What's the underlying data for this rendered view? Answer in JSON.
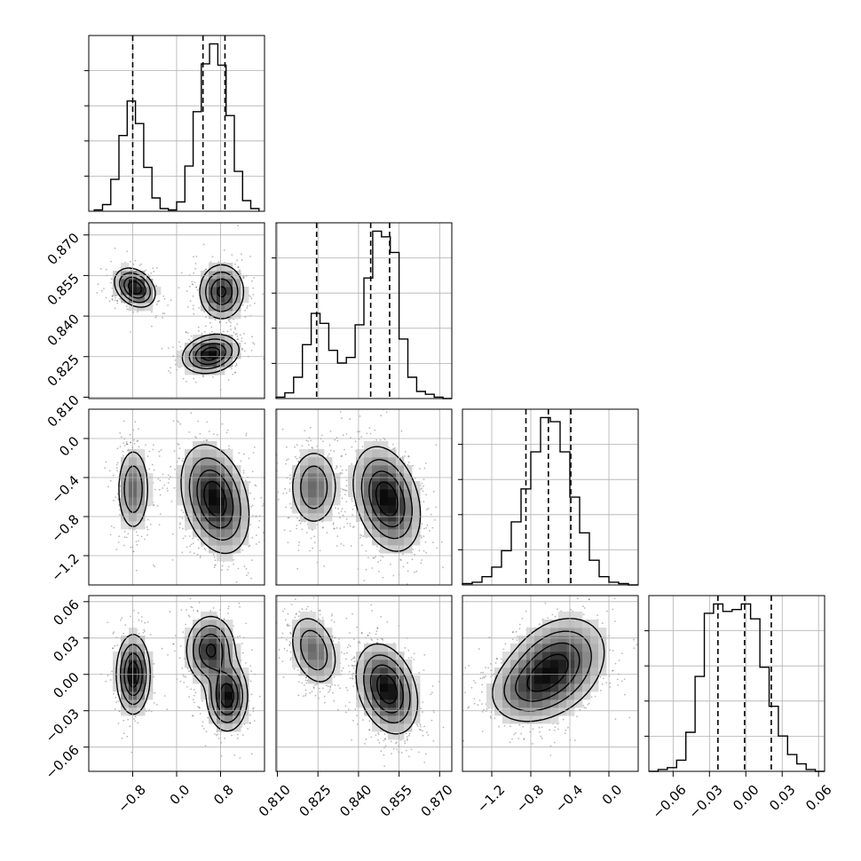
{
  "chart_data": {
    "type": "corner",
    "parameters": [
      {
        "range": [
          -1.6,
          1.6
        ],
        "ticks": [
          "−0.8",
          "0.0",
          "0.8"
        ],
        "tick_values": [
          -0.8,
          0.0,
          0.8
        ],
        "quantiles": [
          -0.8,
          0.48,
          0.88
        ]
      },
      {
        "range": [
          0.8095,
          0.8745
        ],
        "ticks": [
          "0.810",
          "0.825",
          "0.840",
          "0.855",
          "0.870"
        ],
        "tick_values": [
          0.81,
          0.825,
          0.84,
          0.855,
          0.87
        ],
        "quantiles": [
          0.8245,
          0.8445,
          0.8515
        ]
      },
      {
        "range": [
          -1.5,
          0.3
        ],
        "ticks": [
          "−1.2",
          "−0.8",
          "−0.4",
          "0.0"
        ],
        "tick_values": [
          -1.2,
          -0.8,
          -0.4,
          0.0
        ],
        "quantiles": [
          -0.85,
          -0.62,
          -0.39
        ]
      },
      {
        "range": [
          -0.08,
          0.065
        ],
        "ticks": [
          "−0.06",
          "−0.03",
          "0.00",
          "0.03",
          "0.06"
        ],
        "tick_values": [
          -0.06,
          -0.03,
          0.0,
          0.03,
          0.06
        ],
        "quantiles": [
          -0.023,
          -0.001,
          0.021
        ]
      }
    ],
    "histograms": [
      {
        "param": 0,
        "bins": [
          -1.5,
          1.5
        ],
        "counts": [
          1,
          5,
          24,
          57,
          83,
          66,
          33,
          10,
          2,
          1,
          7,
          34,
          75,
          111,
          126,
          110,
          72,
          30,
          8,
          2
        ]
      },
      {
        "param": 1,
        "bins": [
          0.8095,
          0.8745
        ],
        "counts": [
          1,
          4,
          15,
          38,
          60,
          53,
          34,
          25,
          29,
          52,
          85,
          118,
          114,
          103,
          42,
          15,
          5,
          3,
          1,
          0
        ]
      },
      {
        "param": 2,
        "bins": [
          -1.5,
          0.3
        ],
        "counts": [
          1,
          2,
          6,
          13,
          25,
          46,
          70,
          97,
          122,
          119,
          97,
          64,
          38,
          18,
          6,
          2,
          1,
          0
        ]
      },
      {
        "param": 3,
        "bins": [
          -0.08,
          0.065
        ],
        "counts": [
          0,
          1,
          2,
          6,
          21,
          51,
          85,
          90,
          86,
          87,
          90,
          82,
          56,
          35,
          19,
          9,
          4,
          1,
          0
        ]
      }
    ],
    "blobs": [
      {
        "row": 1,
        "col": 0,
        "mx": -0.76,
        "my": 0.8505,
        "sx": 0.18,
        "sy": 0.0035,
        "rho": -0.3,
        "w": 0.35
      },
      {
        "row": 1,
        "col": 0,
        "mx": 0.82,
        "my": 0.849,
        "sx": 0.2,
        "sy": 0.005,
        "rho": 0.0,
        "w": 0.3
      },
      {
        "row": 1,
        "col": 0,
        "mx": 0.62,
        "my": 0.826,
        "sx": 0.25,
        "sy": 0.0035,
        "rho": 0.2,
        "w": 0.35
      },
      {
        "row": 2,
        "col": 0,
        "mx": -0.79,
        "my": -0.52,
        "sx": 0.15,
        "sy": 0.22,
        "rho": 0.0,
        "w": 0.35
      },
      {
        "row": 2,
        "col": 0,
        "mx": 0.7,
        "my": -0.62,
        "sx": 0.3,
        "sy": 0.27,
        "rho": -0.3,
        "w": 0.65
      },
      {
        "row": 2,
        "col": 1,
        "mx": 0.8235,
        "my": -0.5,
        "sx": 0.0045,
        "sy": 0.2,
        "rho": 0.0,
        "w": 0.35
      },
      {
        "row": 2,
        "col": 1,
        "mx": 0.8505,
        "my": -0.62,
        "sx": 0.006,
        "sy": 0.26,
        "rho": -0.3,
        "w": 0.65
      },
      {
        "row": 3,
        "col": 0,
        "mx": -0.79,
        "my": 0.0,
        "sx": 0.15,
        "sy": 0.016,
        "rho": 0.0,
        "w": 0.35
      },
      {
        "row": 3,
        "col": 0,
        "mx": 0.62,
        "my": 0.02,
        "sx": 0.22,
        "sy": 0.014,
        "rho": 0.0,
        "w": 0.3
      },
      {
        "row": 3,
        "col": 0,
        "mx": 0.92,
        "my": -0.018,
        "sx": 0.18,
        "sy": 0.014,
        "rho": 0.0,
        "w": 0.35
      },
      {
        "row": 3,
        "col": 1,
        "mx": 0.8235,
        "my": 0.02,
        "sx": 0.0045,
        "sy": 0.015,
        "rho": -0.3,
        "w": 0.35
      },
      {
        "row": 3,
        "col": 1,
        "mx": 0.8505,
        "my": -0.012,
        "sx": 0.0055,
        "sy": 0.018,
        "rho": -0.3,
        "w": 0.65
      },
      {
        "row": 3,
        "col": 2,
        "mx": -0.55,
        "my": 0.006,
        "sx": 0.25,
        "sy": 0.02,
        "rho": 0.3,
        "w": 0.7
      },
      {
        "row": 3,
        "col": 2,
        "mx": -0.85,
        "my": -0.012,
        "sx": 0.2,
        "sy": 0.014,
        "rho": 0.2,
        "w": 0.3
      }
    ]
  }
}
